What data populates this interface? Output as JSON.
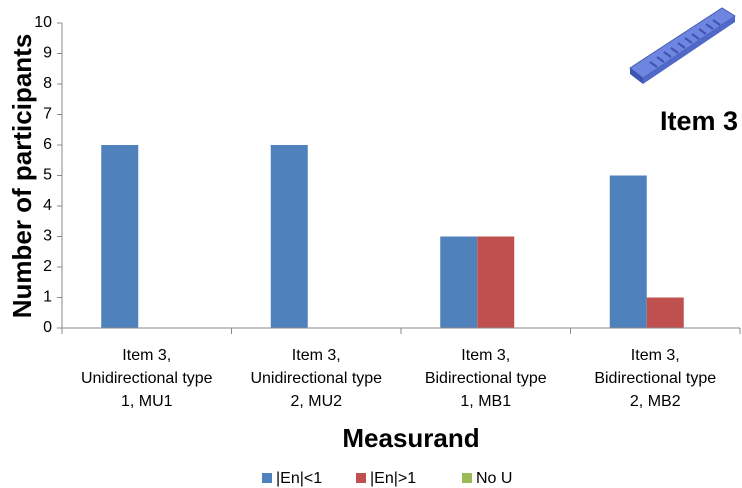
{
  "chart_data": {
    "type": "bar",
    "annotation": "Item 3",
    "x_label": "Measurand",
    "y_label": "Number of participants",
    "categories": [
      [
        "Item 3,",
        "Unidirectional type",
        "1, MU1"
      ],
      [
        "Item 3,",
        "Unidirectional type",
        "2, MU2"
      ],
      [
        "Item 3,",
        "Bidirectional type",
        "1, MB1"
      ],
      [
        "Item 3,",
        "Bidirectional type",
        "2, MB2"
      ]
    ],
    "series": [
      {
        "name": "|En|<1",
        "color": "#4f81bd",
        "values": [
          6,
          6,
          3,
          5
        ]
      },
      {
        "name": "|En|>1",
        "color": "#c0504d",
        "values": [
          0,
          0,
          3,
          1
        ]
      },
      {
        "name": "No U",
        "color": "#9bbb59",
        "values": [
          0,
          0,
          0,
          0
        ]
      }
    ],
    "ylim": [
      0,
      10
    ],
    "yticks": [
      0,
      1,
      2,
      3,
      4,
      5,
      6,
      7,
      8,
      9,
      10
    ],
    "grid": false,
    "legend": "bottom"
  }
}
